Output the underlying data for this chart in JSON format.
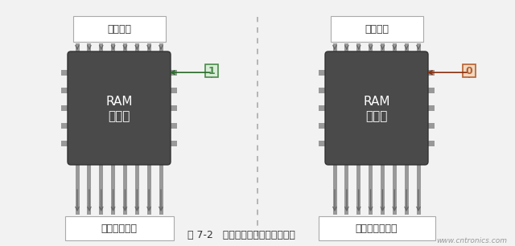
{
  "bg_color": "#f2f2f2",
  "title": "图 7-2   存储器包括读模式与写模式",
  "watermark": "www.cntronics.com",
  "chip_color": "#4a4a4a",
  "chip_border_color": "#555555",
  "pin_color": "#888888",
  "label_box_color": "#ffffff",
  "label_box_border": "#aaaaaa",
  "write_label_top": "单元地址",
  "write_label_bottom": "单元的新数据",
  "write_chip_text1": "RAM",
  "write_chip_text2": "写模式",
  "write_signal_value": "1",
  "write_signal_color": "#4a8a4a",
  "write_signal_bg": "#d8edd8",
  "write_signal_border": "#4a8a4a",
  "write_arrow_color": "#2a6a2a",
  "read_label_top": "单元地址",
  "read_label_bottom": "单元的当前数据",
  "read_chip_text1": "RAM",
  "read_chip_text2": "读模式",
  "read_signal_value": "0",
  "read_signal_color": "#b86030",
  "read_signal_bg": "#f0d8c0",
  "read_signal_border": "#b86030",
  "read_arrow_color": "#8b3010",
  "divider_color": "#aaaaaa",
  "num_pins": 8,
  "num_side_pins": 5
}
